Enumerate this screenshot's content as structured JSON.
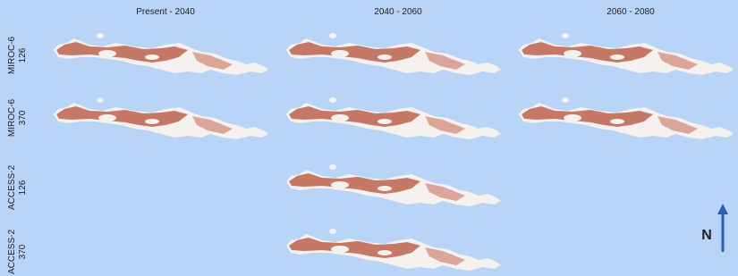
{
  "columns": [
    "Present - 2040",
    "2040 - 2060",
    "2060 - 2080"
  ],
  "rows": [
    {
      "model": "MIROC-6",
      "scenario": "126"
    },
    {
      "model": "MIROC-6",
      "scenario": "370"
    },
    {
      "model": "ACCESS-2",
      "scenario": "126"
    },
    {
      "model": "ACCESS-2",
      "scenario": "370"
    }
  ],
  "north_label": "N"
}
